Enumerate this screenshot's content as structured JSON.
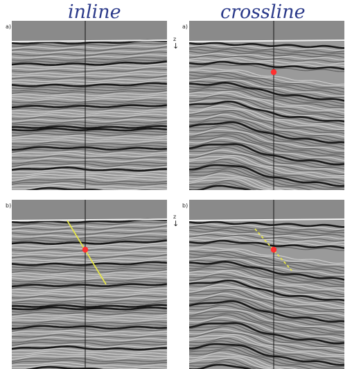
{
  "columns": [
    {
      "title": "inline"
    },
    {
      "title": "crossline"
    }
  ],
  "rows": [
    {
      "label": "a)"
    },
    {
      "label": "b)"
    }
  ],
  "z_axis_label": "z",
  "panels": [
    {
      "id": "a-inline",
      "row": "a)",
      "column": "inline",
      "red_marker": false,
      "yellow_line": false
    },
    {
      "id": "a-crossline",
      "row": "a)",
      "column": "crossline",
      "red_marker": true,
      "yellow_line": false
    },
    {
      "id": "b-inline",
      "row": "b)",
      "column": "inline",
      "red_marker": true,
      "yellow_line": true
    },
    {
      "id": "b-crossline",
      "row": "b)",
      "column": "crossline",
      "red_marker": true,
      "yellow_line": true
    }
  ],
  "colors": {
    "title": "#2b3a8a",
    "water": "#8a8a8a",
    "marker": "#ff3030",
    "dip_line": "#e6e64a",
    "section_line": "#111111"
  }
}
